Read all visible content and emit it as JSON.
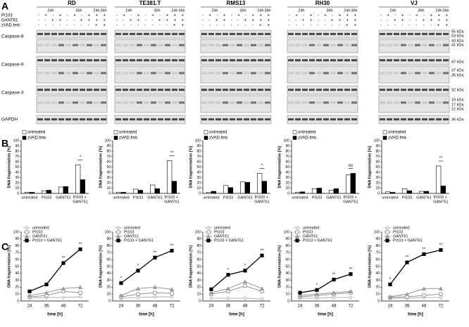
{
  "panels": {
    "a": "A",
    "b": "B",
    "c": "C"
  },
  "blots": {
    "cell_lines": [
      "RD",
      "TE381.T",
      "RMS13",
      "RH30",
      "VJ"
    ],
    "times": [
      "24h",
      "36h",
      "24h",
      "36h"
    ],
    "row_labels": [
      "PI103",
      "GANT61",
      "zVAD.fmk"
    ],
    "lane_signs": [
      "- + - + - + - + + +",
      "- - + + - - + + + +",
      "- - - - - - - - + +"
    ],
    "proteins": [
      "Caspase-8",
      "Caspase-9",
      "Caspase-3",
      "GAPDH"
    ],
    "markers": [
      "55 kDa",
      "53 kDa",
      "43 kDa",
      "41 kDa",
      "47 kDa",
      "37 kDa",
      "35 kDa",
      "32 kDa",
      "19 kDa",
      "17 kDa",
      "12 kDa",
      "36 kDa"
    ]
  },
  "chart_data": [
    {
      "type": "bar",
      "ylabel": "DNA fragmentation [%]",
      "categories": [
        "untreated",
        "PI103",
        "GANT61",
        "PI103 + GANT61"
      ],
      "series": [
        {
          "name": "untreated",
          "color": "#ffffff",
          "values": [
            2,
            5,
            12,
            54
          ]
        },
        {
          "name": "zVAD.fmk",
          "color": "#000000",
          "values": [
            2,
            6,
            13,
            26
          ]
        }
      ],
      "ylim": [
        0,
        100
      ],
      "yticks": [
        0,
        10,
        20,
        30,
        40,
        50,
        60,
        70,
        80,
        90,
        100
      ],
      "annotation": "*"
    },
    {
      "type": "bar",
      "ylabel": "DNA fragmentation [%]",
      "categories": [
        "untreated",
        "PI103",
        "GANT61",
        "PI103 + GANT61"
      ],
      "series": [
        {
          "name": "untreated",
          "color": "#ffffff",
          "values": [
            2,
            8,
            16,
            62
          ]
        },
        {
          "name": "zVAD.fmk",
          "color": "#000000",
          "values": [
            2,
            6,
            9,
            23
          ]
        }
      ],
      "ylim": [
        0,
        100
      ],
      "yticks": [
        0,
        10,
        20,
        30,
        40,
        50,
        60,
        70,
        80,
        90,
        100
      ],
      "annotation": "**"
    },
    {
      "type": "bar",
      "ylabel": "DNA fragmentation [%]",
      "categories": [
        "untreated",
        "PI103",
        "GANT61",
        "PI103 + GANT61"
      ],
      "series": [
        {
          "name": "untreated",
          "color": "#ffffff",
          "values": [
            2,
            15,
            22,
            38
          ]
        },
        {
          "name": "zVAD.fmk",
          "color": "#000000",
          "values": [
            4,
            11,
            21,
            23
          ]
        }
      ],
      "ylim": [
        0,
        100
      ],
      "yticks": [
        0,
        10,
        20,
        30,
        40,
        50,
        60,
        70,
        80,
        90,
        100
      ],
      "annotation": "*"
    },
    {
      "type": "bar",
      "ylabel": "DNA fragmentation [%]",
      "categories": [
        "untreated",
        "PI103",
        "GANT61",
        "PI103 + GANT61"
      ],
      "series": [
        {
          "name": "untreated",
          "color": "#ffffff",
          "values": [
            2,
            9,
            6,
            35
          ]
        },
        {
          "name": "zVAD.fmk",
          "color": "#000000",
          "values": [
            3,
            10,
            9,
            38
          ]
        }
      ],
      "ylim": [
        0,
        100
      ],
      "yticks": [
        0,
        10,
        20,
        30,
        40,
        50,
        60,
        70,
        80,
        90,
        100
      ],
      "annotation": "ns"
    },
    {
      "type": "bar",
      "ylabel": "DNA fragmentation [%]",
      "categories": [
        "untreated",
        "PI103",
        "GANT61",
        "PI103 + GANT61"
      ],
      "series": [
        {
          "name": "untreated",
          "color": "#ffffff",
          "values": [
            3,
            9,
            4,
            52
          ]
        },
        {
          "name": "zVAD.fmk",
          "color": "#000000",
          "values": [
            2,
            5,
            4,
            14
          ]
        }
      ],
      "ylim": [
        0,
        100
      ],
      "yticks": [
        0,
        10,
        20,
        30,
        40,
        50,
        60,
        70,
        80,
        90,
        100
      ],
      "annotation": "**"
    },
    {
      "type": "line",
      "xlabel": "time [h]",
      "ylabel": "DNA fragmentation [%]",
      "categories": [
        "24",
        "36",
        "48",
        "72"
      ],
      "series": [
        {
          "name": "untreated",
          "color": "#aaaaaa",
          "fill": "#ffffff",
          "marker": "diamond",
          "values": [
            4,
            5,
            5,
            6
          ]
        },
        {
          "name": "PI103",
          "color": "#888888",
          "fill": "#ffffff",
          "marker": "square",
          "values": [
            6,
            8,
            14,
            12
          ]
        },
        {
          "name": "GANT61",
          "color": "#888888",
          "fill": "#aaaaaa",
          "marker": "triangle",
          "values": [
            8,
            12,
            18,
            20
          ]
        },
        {
          "name": "PI103 + GANT61",
          "color": "#000000",
          "fill": "#000000",
          "marker": "square",
          "values": [
            14,
            24,
            55,
            75
          ]
        }
      ],
      "ylim": [
        0,
        100
      ],
      "yticks": [
        0,
        10,
        20,
        30,
        40,
        50,
        60,
        70,
        80,
        90,
        100
      ],
      "annotations": [
        {
          "x": "48",
          "text": "**"
        },
        {
          "x": "72",
          "text": "**"
        }
      ]
    },
    {
      "type": "line",
      "xlabel": "time [h]",
      "ylabel": "DNA fragmentation [%]",
      "categories": [
        "24",
        "36",
        "48",
        "72"
      ],
      "series": [
        {
          "name": "untreated",
          "color": "#aaaaaa",
          "fill": "#ffffff",
          "marker": "diamond",
          "values": [
            4,
            5,
            6,
            6
          ]
        },
        {
          "name": "PI103",
          "color": "#888888",
          "fill": "#ffffff",
          "marker": "square",
          "values": [
            6,
            10,
            12,
            11
          ]
        },
        {
          "name": "GANT61",
          "color": "#888888",
          "fill": "#aaaaaa",
          "marker": "triangle",
          "values": [
            8,
            18,
            20,
            17
          ]
        },
        {
          "name": "PI103 + GANT61",
          "color": "#000000",
          "fill": "#000000",
          "marker": "square",
          "values": [
            26,
            44,
            63,
            73
          ]
        }
      ],
      "ylim": [
        0,
        100
      ],
      "yticks": [
        0,
        10,
        20,
        30,
        40,
        50,
        60,
        70,
        80,
        90,
        100
      ],
      "annotations": [
        {
          "x": "24",
          "text": "*"
        },
        {
          "x": "36",
          "text": "*"
        },
        {
          "x": "48",
          "text": "**"
        },
        {
          "x": "72",
          "text": "**"
        }
      ]
    },
    {
      "type": "line",
      "xlabel": "time [h]",
      "ylabel": "DNA fragmentation [%]",
      "categories": [
        "24",
        "36",
        "48",
        "72"
      ],
      "series": [
        {
          "name": "untreated",
          "color": "#aaaaaa",
          "fill": "#ffffff",
          "marker": "diamond",
          "values": [
            4,
            4,
            4,
            3
          ]
        },
        {
          "name": "PI103",
          "color": "#888888",
          "fill": "#ffffff",
          "marker": "square",
          "values": [
            10,
            14,
            22,
            14
          ]
        },
        {
          "name": "GANT61",
          "color": "#888888",
          "fill": "#aaaaaa",
          "marker": "triangle",
          "values": [
            12,
            18,
            28,
            18
          ]
        },
        {
          "name": "PI103 + GANT61",
          "color": "#000000",
          "fill": "#000000",
          "marker": "square",
          "values": [
            17,
            38,
            44,
            66
          ]
        }
      ],
      "ylim": [
        0,
        100
      ],
      "yticks": [
        0,
        10,
        20,
        30,
        40,
        50,
        60,
        70,
        80,
        90,
        100
      ],
      "annotations": [
        {
          "x": "36",
          "text": "*"
        },
        {
          "x": "48",
          "text": "*"
        },
        {
          "x": "72",
          "text": "**"
        }
      ]
    },
    {
      "type": "line",
      "xlabel": "time [h]",
      "ylabel": "DNA fragmentation [%]",
      "categories": [
        "24",
        "36",
        "48",
        "72"
      ],
      "series": [
        {
          "name": "untreated",
          "color": "#aaaaaa",
          "fill": "#ffffff",
          "marker": "diamond",
          "values": [
            4,
            4,
            5,
            5
          ]
        },
        {
          "name": "PI103",
          "color": "#888888",
          "fill": "#ffffff",
          "marker": "square",
          "values": [
            6,
            8,
            10,
            12
          ]
        },
        {
          "name": "GANT61",
          "color": "#888888",
          "fill": "#aaaaaa",
          "marker": "triangle",
          "values": [
            8,
            10,
            12,
            14
          ]
        },
        {
          "name": "PI103 + GANT61",
          "color": "#000000",
          "fill": "#000000",
          "marker": "square",
          "values": [
            12,
            16,
            31,
            39
          ]
        }
      ],
      "ylim": [
        0,
        100
      ],
      "yticks": [
        0,
        10,
        20,
        30,
        40,
        50,
        60,
        70,
        80,
        90,
        100
      ],
      "annotations": [
        {
          "x": "36",
          "text": "*"
        },
        {
          "x": "48",
          "text": "**"
        },
        {
          "x": "72",
          "text": "**"
        }
      ]
    },
    {
      "type": "line",
      "xlabel": "time [h]",
      "ylabel": "DNA fragmentation [%]",
      "categories": [
        "24",
        "36",
        "48",
        "72"
      ],
      "series": [
        {
          "name": "untreated",
          "color": "#aaaaaa",
          "fill": "#ffffff",
          "marker": "diamond",
          "values": [
            4,
            4,
            5,
            5
          ]
        },
        {
          "name": "PI103",
          "color": "#888888",
          "fill": "#ffffff",
          "marker": "square",
          "values": [
            5,
            6,
            8,
            10
          ]
        },
        {
          "name": "GANT61",
          "color": "#888888",
          "fill": "#aaaaaa",
          "marker": "triangle",
          "values": [
            6,
            10,
            18,
            18
          ]
        },
        {
          "name": "PI103 + GANT61",
          "color": "#000000",
          "fill": "#000000",
          "marker": "square",
          "values": [
            24,
            56,
            68,
            74
          ]
        }
      ],
      "ylim": [
        0,
        100
      ],
      "yticks": [
        0,
        10,
        20,
        30,
        40,
        50,
        60,
        70,
        80,
        90,
        100
      ],
      "annotations": [
        {
          "x": "24",
          "text": "*"
        },
        {
          "x": "36",
          "text": "**"
        },
        {
          "x": "48",
          "text": "**"
        },
        {
          "x": "72",
          "text": "**"
        }
      ]
    }
  ]
}
